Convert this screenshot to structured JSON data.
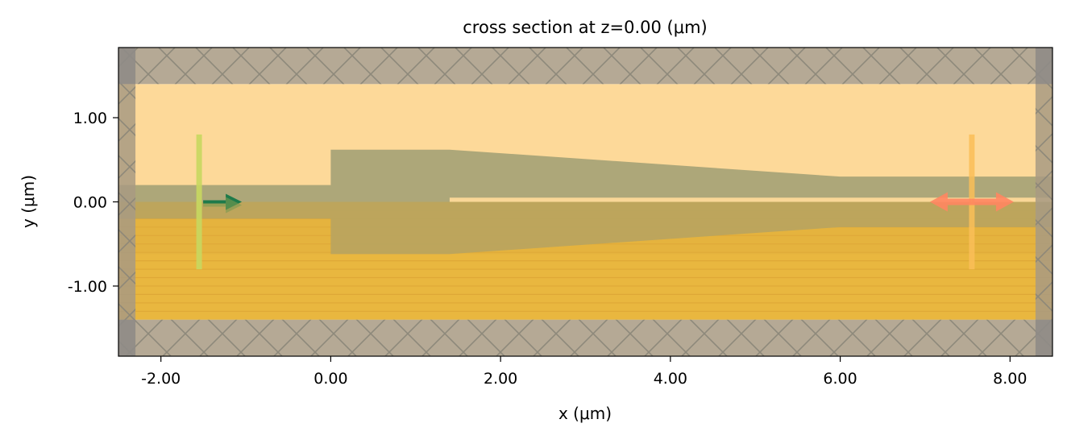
{
  "chart_data": {
    "type": "cross-section",
    "title": "cross section at z=0.00 (μm)",
    "xlabel": "x (μm)",
    "ylabel": "y (μm)",
    "xlim": [
      -2.5,
      8.5
    ],
    "ylim": [
      -1.8333,
      1.8333
    ],
    "xticks": [
      -2.0,
      0.0,
      2.0,
      4.0,
      6.0,
      8.0
    ],
    "yticks": [
      -1.0,
      0.0,
      1.0
    ],
    "xtick_labels": [
      "-2.00",
      "0.00",
      "2.00",
      "4.00",
      "6.00",
      "8.00"
    ],
    "ytick_labels": [
      "-1.00",
      "0.00",
      "1.00"
    ],
    "grid": false,
    "legend": "none",
    "regions": {
      "cladding": {
        "x": [
          -2.5,
          8.5
        ],
        "y": [
          -1.4,
          1.4
        ]
      },
      "substrate_layer": {
        "x": [
          -2.5,
          8.5
        ],
        "y": [
          -1.4,
          0.0
        ]
      },
      "pml_top": {
        "x": [
          -2.5,
          8.5
        ],
        "y": [
          1.4,
          1.8333
        ]
      },
      "pml_bottom": {
        "x": [
          -2.5,
          8.5
        ],
        "y": [
          -1.8333,
          -1.4
        ]
      },
      "pml_left": {
        "x": [
          -2.5,
          -2.3
        ],
        "y": [
          -1.8333,
          1.8333
        ]
      },
      "pml_right": {
        "x": [
          8.3,
          8.5
        ],
        "y": [
          -1.8333,
          1.8333
        ]
      }
    },
    "waveguide_polygon": [
      [
        -2.5,
        0.2
      ],
      [
        0.0,
        0.2
      ],
      [
        0.0,
        0.62
      ],
      [
        1.4,
        0.62
      ],
      [
        6.0,
        0.3
      ],
      [
        8.5,
        0.3
      ],
      [
        8.5,
        -0.3
      ],
      [
        6.0,
        -0.3
      ],
      [
        1.4,
        -0.62
      ],
      [
        0.0,
        -0.62
      ],
      [
        0.0,
        -0.2
      ],
      [
        -2.5,
        -0.2
      ]
    ],
    "slot": {
      "x": [
        1.4,
        8.5
      ],
      "y": [
        0.0,
        0.05
      ]
    },
    "source": {
      "x": -1.55,
      "y": [
        -0.8,
        0.8
      ],
      "direction": "+x"
    },
    "monitor": {
      "x": 7.55,
      "y": [
        -0.8,
        0.8
      ],
      "direction": "both"
    },
    "colors": {
      "cladding": "#fdd999",
      "substrate": "#e9b73f",
      "waveguide": "#a29f74",
      "pml": "#a89a82",
      "pml_hatch": "#8a8578",
      "source": "#c8d860",
      "source_arrow": "#1e7a4a",
      "monitor": "#fbbf58",
      "monitor_arrow": "#ff8660"
    }
  }
}
